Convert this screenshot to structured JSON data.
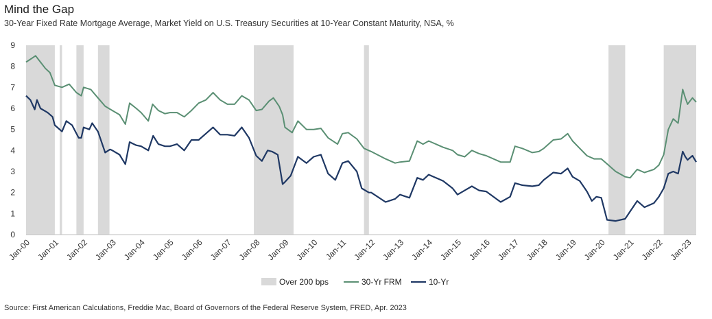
{
  "title": "Mind the Gap",
  "subtitle": "30-Year Fixed Rate Mortgage Average, Market Yield on U.S. Treasury Securities at 10-Year Constant Maturity, NSA, %",
  "source": "Source: First American Calculations, Freddie Mac, Board of Governors of the Federal Reserve System, FRED, Apr. 2023",
  "colors": {
    "frm": "#5a8f73",
    "tenyr": "#1f3864",
    "shade": "#d9d9d9",
    "axis": "#bfbfbf"
  },
  "chart_data": {
    "type": "line",
    "x_unit": "decimal year",
    "xlim": [
      2000.0,
      2023.3
    ],
    "ylim": [
      0,
      9
    ],
    "yticks": [
      0,
      1,
      2,
      3,
      4,
      5,
      6,
      7,
      8,
      9
    ],
    "xtick_labels": [
      "Jan-00",
      "Jan-01",
      "Jan-02",
      "Jan-03",
      "Jan-04",
      "Jan-05",
      "Jan-06",
      "Jan-07",
      "Jan-08",
      "Jan-09",
      "Jan-10",
      "Jan-11",
      "Jan-12",
      "Jan-13",
      "Jan-14",
      "Jan-15",
      "Jan-16",
      "Jan-17",
      "Jan-18",
      "Jan-19",
      "Jan-20",
      "Jan-21",
      "Jan-22",
      "Jan-23"
    ],
    "legend": [
      {
        "label": "Over 200 bps",
        "kind": "box"
      },
      {
        "label": "30-Yr FRM",
        "kind": "line"
      },
      {
        "label": "10-Yr",
        "kind": "line"
      }
    ],
    "shaded_periods": [
      [
        2000.0,
        2001.0
      ],
      [
        2001.17,
        2001.25
      ],
      [
        2001.75,
        2002.0
      ],
      [
        2002.5,
        2002.9
      ],
      [
        2007.92,
        2008.0
      ],
      [
        2008.0,
        2009.3
      ],
      [
        2011.75,
        2011.92
      ],
      [
        2020.25,
        2020.83
      ],
      [
        2022.17,
        2023.3
      ]
    ],
    "series": [
      {
        "name": "30-Yr FRM",
        "points": [
          [
            2000.0,
            8.2
          ],
          [
            2000.17,
            8.35
          ],
          [
            2000.33,
            8.5
          ],
          [
            2000.5,
            8.2
          ],
          [
            2000.67,
            7.9
          ],
          [
            2000.83,
            7.7
          ],
          [
            2001.0,
            7.1
          ],
          [
            2001.25,
            7.0
          ],
          [
            2001.5,
            7.15
          ],
          [
            2001.75,
            6.75
          ],
          [
            2001.92,
            6.6
          ],
          [
            2002.0,
            7.0
          ],
          [
            2002.25,
            6.9
          ],
          [
            2002.5,
            6.5
          ],
          [
            2002.75,
            6.1
          ],
          [
            2003.0,
            5.9
          ],
          [
            2003.25,
            5.7
          ],
          [
            2003.45,
            5.25
          ],
          [
            2003.6,
            6.25
          ],
          [
            2003.83,
            6.0
          ],
          [
            2004.0,
            5.8
          ],
          [
            2004.25,
            5.4
          ],
          [
            2004.4,
            6.2
          ],
          [
            2004.6,
            5.9
          ],
          [
            2004.83,
            5.75
          ],
          [
            2005.0,
            5.8
          ],
          [
            2005.25,
            5.8
          ],
          [
            2005.5,
            5.6
          ],
          [
            2005.75,
            5.9
          ],
          [
            2006.0,
            6.25
          ],
          [
            2006.25,
            6.4
          ],
          [
            2006.5,
            6.75
          ],
          [
            2006.75,
            6.4
          ],
          [
            2007.0,
            6.2
          ],
          [
            2007.25,
            6.2
          ],
          [
            2007.5,
            6.6
          ],
          [
            2007.75,
            6.4
          ],
          [
            2008.0,
            5.9
          ],
          [
            2008.2,
            5.95
          ],
          [
            2008.45,
            6.35
          ],
          [
            2008.6,
            6.5
          ],
          [
            2008.8,
            6.1
          ],
          [
            2008.92,
            5.7
          ],
          [
            2009.0,
            5.1
          ],
          [
            2009.25,
            4.85
          ],
          [
            2009.45,
            5.4
          ],
          [
            2009.75,
            5.0
          ],
          [
            2010.0,
            5.0
          ],
          [
            2010.25,
            5.05
          ],
          [
            2010.5,
            4.6
          ],
          [
            2010.83,
            4.3
          ],
          [
            2011.0,
            4.8
          ],
          [
            2011.2,
            4.85
          ],
          [
            2011.5,
            4.55
          ],
          [
            2011.75,
            4.1
          ],
          [
            2012.0,
            3.95
          ],
          [
            2012.5,
            3.6
          ],
          [
            2012.83,
            3.4
          ],
          [
            2013.0,
            3.45
          ],
          [
            2013.33,
            3.5
          ],
          [
            2013.6,
            4.45
          ],
          [
            2013.8,
            4.3
          ],
          [
            2014.0,
            4.45
          ],
          [
            2014.5,
            4.15
          ],
          [
            2014.83,
            4.0
          ],
          [
            2015.0,
            3.8
          ],
          [
            2015.25,
            3.7
          ],
          [
            2015.5,
            4.0
          ],
          [
            2015.75,
            3.85
          ],
          [
            2016.0,
            3.75
          ],
          [
            2016.5,
            3.45
          ],
          [
            2016.83,
            3.45
          ],
          [
            2017.0,
            4.2
          ],
          [
            2017.25,
            4.1
          ],
          [
            2017.6,
            3.9
          ],
          [
            2017.83,
            3.95
          ],
          [
            2018.0,
            4.1
          ],
          [
            2018.33,
            4.5
          ],
          [
            2018.6,
            4.55
          ],
          [
            2018.83,
            4.8
          ],
          [
            2019.0,
            4.45
          ],
          [
            2019.25,
            4.1
          ],
          [
            2019.5,
            3.75
          ],
          [
            2019.75,
            3.6
          ],
          [
            2020.0,
            3.6
          ],
          [
            2020.25,
            3.3
          ],
          [
            2020.5,
            3.0
          ],
          [
            2020.83,
            2.75
          ],
          [
            2021.0,
            2.7
          ],
          [
            2021.25,
            3.1
          ],
          [
            2021.5,
            2.95
          ],
          [
            2021.83,
            3.1
          ],
          [
            2022.0,
            3.3
          ],
          [
            2022.17,
            3.8
          ],
          [
            2022.33,
            5.0
          ],
          [
            2022.5,
            5.5
          ],
          [
            2022.67,
            5.3
          ],
          [
            2022.83,
            6.9
          ],
          [
            2022.92,
            6.5
          ],
          [
            2023.0,
            6.2
          ],
          [
            2023.17,
            6.5
          ],
          [
            2023.3,
            6.3
          ]
        ]
      },
      {
        "name": "10-Yr",
        "points": [
          [
            2000.0,
            6.6
          ],
          [
            2000.15,
            6.4
          ],
          [
            2000.3,
            5.95
          ],
          [
            2000.38,
            6.4
          ],
          [
            2000.5,
            6.0
          ],
          [
            2000.75,
            5.8
          ],
          [
            2000.92,
            5.6
          ],
          [
            2001.0,
            5.2
          ],
          [
            2001.25,
            4.9
          ],
          [
            2001.4,
            5.4
          ],
          [
            2001.6,
            5.2
          ],
          [
            2001.83,
            4.6
          ],
          [
            2001.92,
            4.6
          ],
          [
            2002.0,
            5.1
          ],
          [
            2002.2,
            5.0
          ],
          [
            2002.3,
            5.3
          ],
          [
            2002.5,
            4.9
          ],
          [
            2002.75,
            3.9
          ],
          [
            2002.92,
            4.05
          ],
          [
            2003.0,
            4.0
          ],
          [
            2003.25,
            3.8
          ],
          [
            2003.45,
            3.35
          ],
          [
            2003.6,
            4.4
          ],
          [
            2003.83,
            4.25
          ],
          [
            2004.0,
            4.2
          ],
          [
            2004.25,
            4.0
          ],
          [
            2004.42,
            4.7
          ],
          [
            2004.6,
            4.3
          ],
          [
            2004.83,
            4.2
          ],
          [
            2005.0,
            4.2
          ],
          [
            2005.25,
            4.3
          ],
          [
            2005.5,
            4.0
          ],
          [
            2005.75,
            4.5
          ],
          [
            2006.0,
            4.5
          ],
          [
            2006.25,
            4.8
          ],
          [
            2006.5,
            5.1
          ],
          [
            2006.75,
            4.75
          ],
          [
            2007.0,
            4.75
          ],
          [
            2007.25,
            4.7
          ],
          [
            2007.5,
            5.1
          ],
          [
            2007.75,
            4.6
          ],
          [
            2008.0,
            3.75
          ],
          [
            2008.2,
            3.5
          ],
          [
            2008.4,
            4.0
          ],
          [
            2008.55,
            3.95
          ],
          [
            2008.75,
            3.8
          ],
          [
            2008.92,
            2.4
          ],
          [
            2009.0,
            2.5
          ],
          [
            2009.2,
            2.8
          ],
          [
            2009.45,
            3.7
          ],
          [
            2009.75,
            3.4
          ],
          [
            2010.0,
            3.7
          ],
          [
            2010.25,
            3.8
          ],
          [
            2010.5,
            2.9
          ],
          [
            2010.75,
            2.6
          ],
          [
            2011.0,
            3.4
          ],
          [
            2011.2,
            3.5
          ],
          [
            2011.5,
            3.0
          ],
          [
            2011.67,
            2.2
          ],
          [
            2011.92,
            2.0
          ],
          [
            2012.0,
            2.0
          ],
          [
            2012.5,
            1.55
          ],
          [
            2012.83,
            1.7
          ],
          [
            2013.0,
            1.9
          ],
          [
            2013.33,
            1.75
          ],
          [
            2013.6,
            2.7
          ],
          [
            2013.8,
            2.6
          ],
          [
            2014.0,
            2.85
          ],
          [
            2014.5,
            2.55
          ],
          [
            2014.83,
            2.2
          ],
          [
            2015.0,
            1.9
          ],
          [
            2015.25,
            2.1
          ],
          [
            2015.5,
            2.3
          ],
          [
            2015.75,
            2.1
          ],
          [
            2016.0,
            2.05
          ],
          [
            2016.5,
            1.55
          ],
          [
            2016.83,
            1.8
          ],
          [
            2017.0,
            2.45
          ],
          [
            2017.25,
            2.35
          ],
          [
            2017.6,
            2.3
          ],
          [
            2017.83,
            2.35
          ],
          [
            2018.0,
            2.6
          ],
          [
            2018.33,
            2.95
          ],
          [
            2018.6,
            2.9
          ],
          [
            2018.83,
            3.15
          ],
          [
            2019.0,
            2.75
          ],
          [
            2019.25,
            2.55
          ],
          [
            2019.5,
            2.05
          ],
          [
            2019.67,
            1.6
          ],
          [
            2019.83,
            1.8
          ],
          [
            2020.0,
            1.75
          ],
          [
            2020.2,
            0.7
          ],
          [
            2020.5,
            0.65
          ],
          [
            2020.83,
            0.75
          ],
          [
            2021.0,
            1.1
          ],
          [
            2021.25,
            1.6
          ],
          [
            2021.5,
            1.3
          ],
          [
            2021.83,
            1.5
          ],
          [
            2022.0,
            1.8
          ],
          [
            2022.17,
            2.2
          ],
          [
            2022.33,
            2.9
          ],
          [
            2022.5,
            3.0
          ],
          [
            2022.67,
            2.9
          ],
          [
            2022.83,
            3.95
          ],
          [
            2022.92,
            3.7
          ],
          [
            2023.0,
            3.55
          ],
          [
            2023.17,
            3.75
          ],
          [
            2023.3,
            3.45
          ]
        ]
      }
    ]
  }
}
